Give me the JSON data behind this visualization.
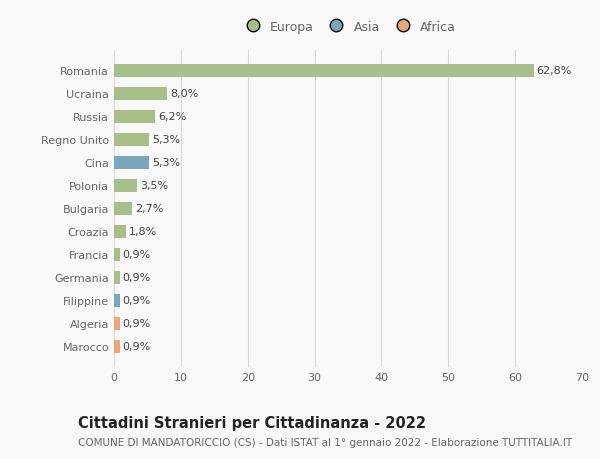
{
  "categories": [
    "Marocco",
    "Algeria",
    "Filippine",
    "Germania",
    "Francia",
    "Croazia",
    "Bulgaria",
    "Polonia",
    "Cina",
    "Regno Unito",
    "Russia",
    "Ucraina",
    "Romania"
  ],
  "values": [
    0.9,
    0.9,
    0.9,
    0.9,
    0.9,
    1.8,
    2.7,
    3.5,
    5.3,
    5.3,
    6.2,
    8.0,
    62.8
  ],
  "labels": [
    "0,9%",
    "0,9%",
    "0,9%",
    "0,9%",
    "0,9%",
    "1,8%",
    "2,7%",
    "3,5%",
    "5,3%",
    "5,3%",
    "6,2%",
    "8,0%",
    "62,8%"
  ],
  "colors": [
    "#e8a87c",
    "#e8a87c",
    "#7ba7bc",
    "#a8bf8a",
    "#a8bf8a",
    "#a8bf8a",
    "#a8bf8a",
    "#a8bf8a",
    "#7ba7bc",
    "#a8bf8a",
    "#a8bf8a",
    "#a8bf8a",
    "#a8bf8a"
  ],
  "legend_labels": [
    "Europa",
    "Asia",
    "Africa"
  ],
  "legend_colors": [
    "#a8bf8a",
    "#7ba7bc",
    "#e8a87c"
  ],
  "title": "Cittadini Stranieri per Cittadinanza - 2022",
  "subtitle": "COMUNE DI MANDATORICCIO (CS) - Dati ISTAT al 1° gennaio 2022 - Elaborazione TUTTITALIA.IT",
  "xlim": [
    0,
    70
  ],
  "xticks": [
    0,
    10,
    20,
    30,
    40,
    50,
    60,
    70
  ],
  "background_color": "#f9f9f9",
  "grid_color": "#d8d8d8",
  "bar_height": 0.55,
  "label_fontsize": 8,
  "tick_label_fontsize": 8,
  "title_fontsize": 10.5,
  "subtitle_fontsize": 7.5
}
